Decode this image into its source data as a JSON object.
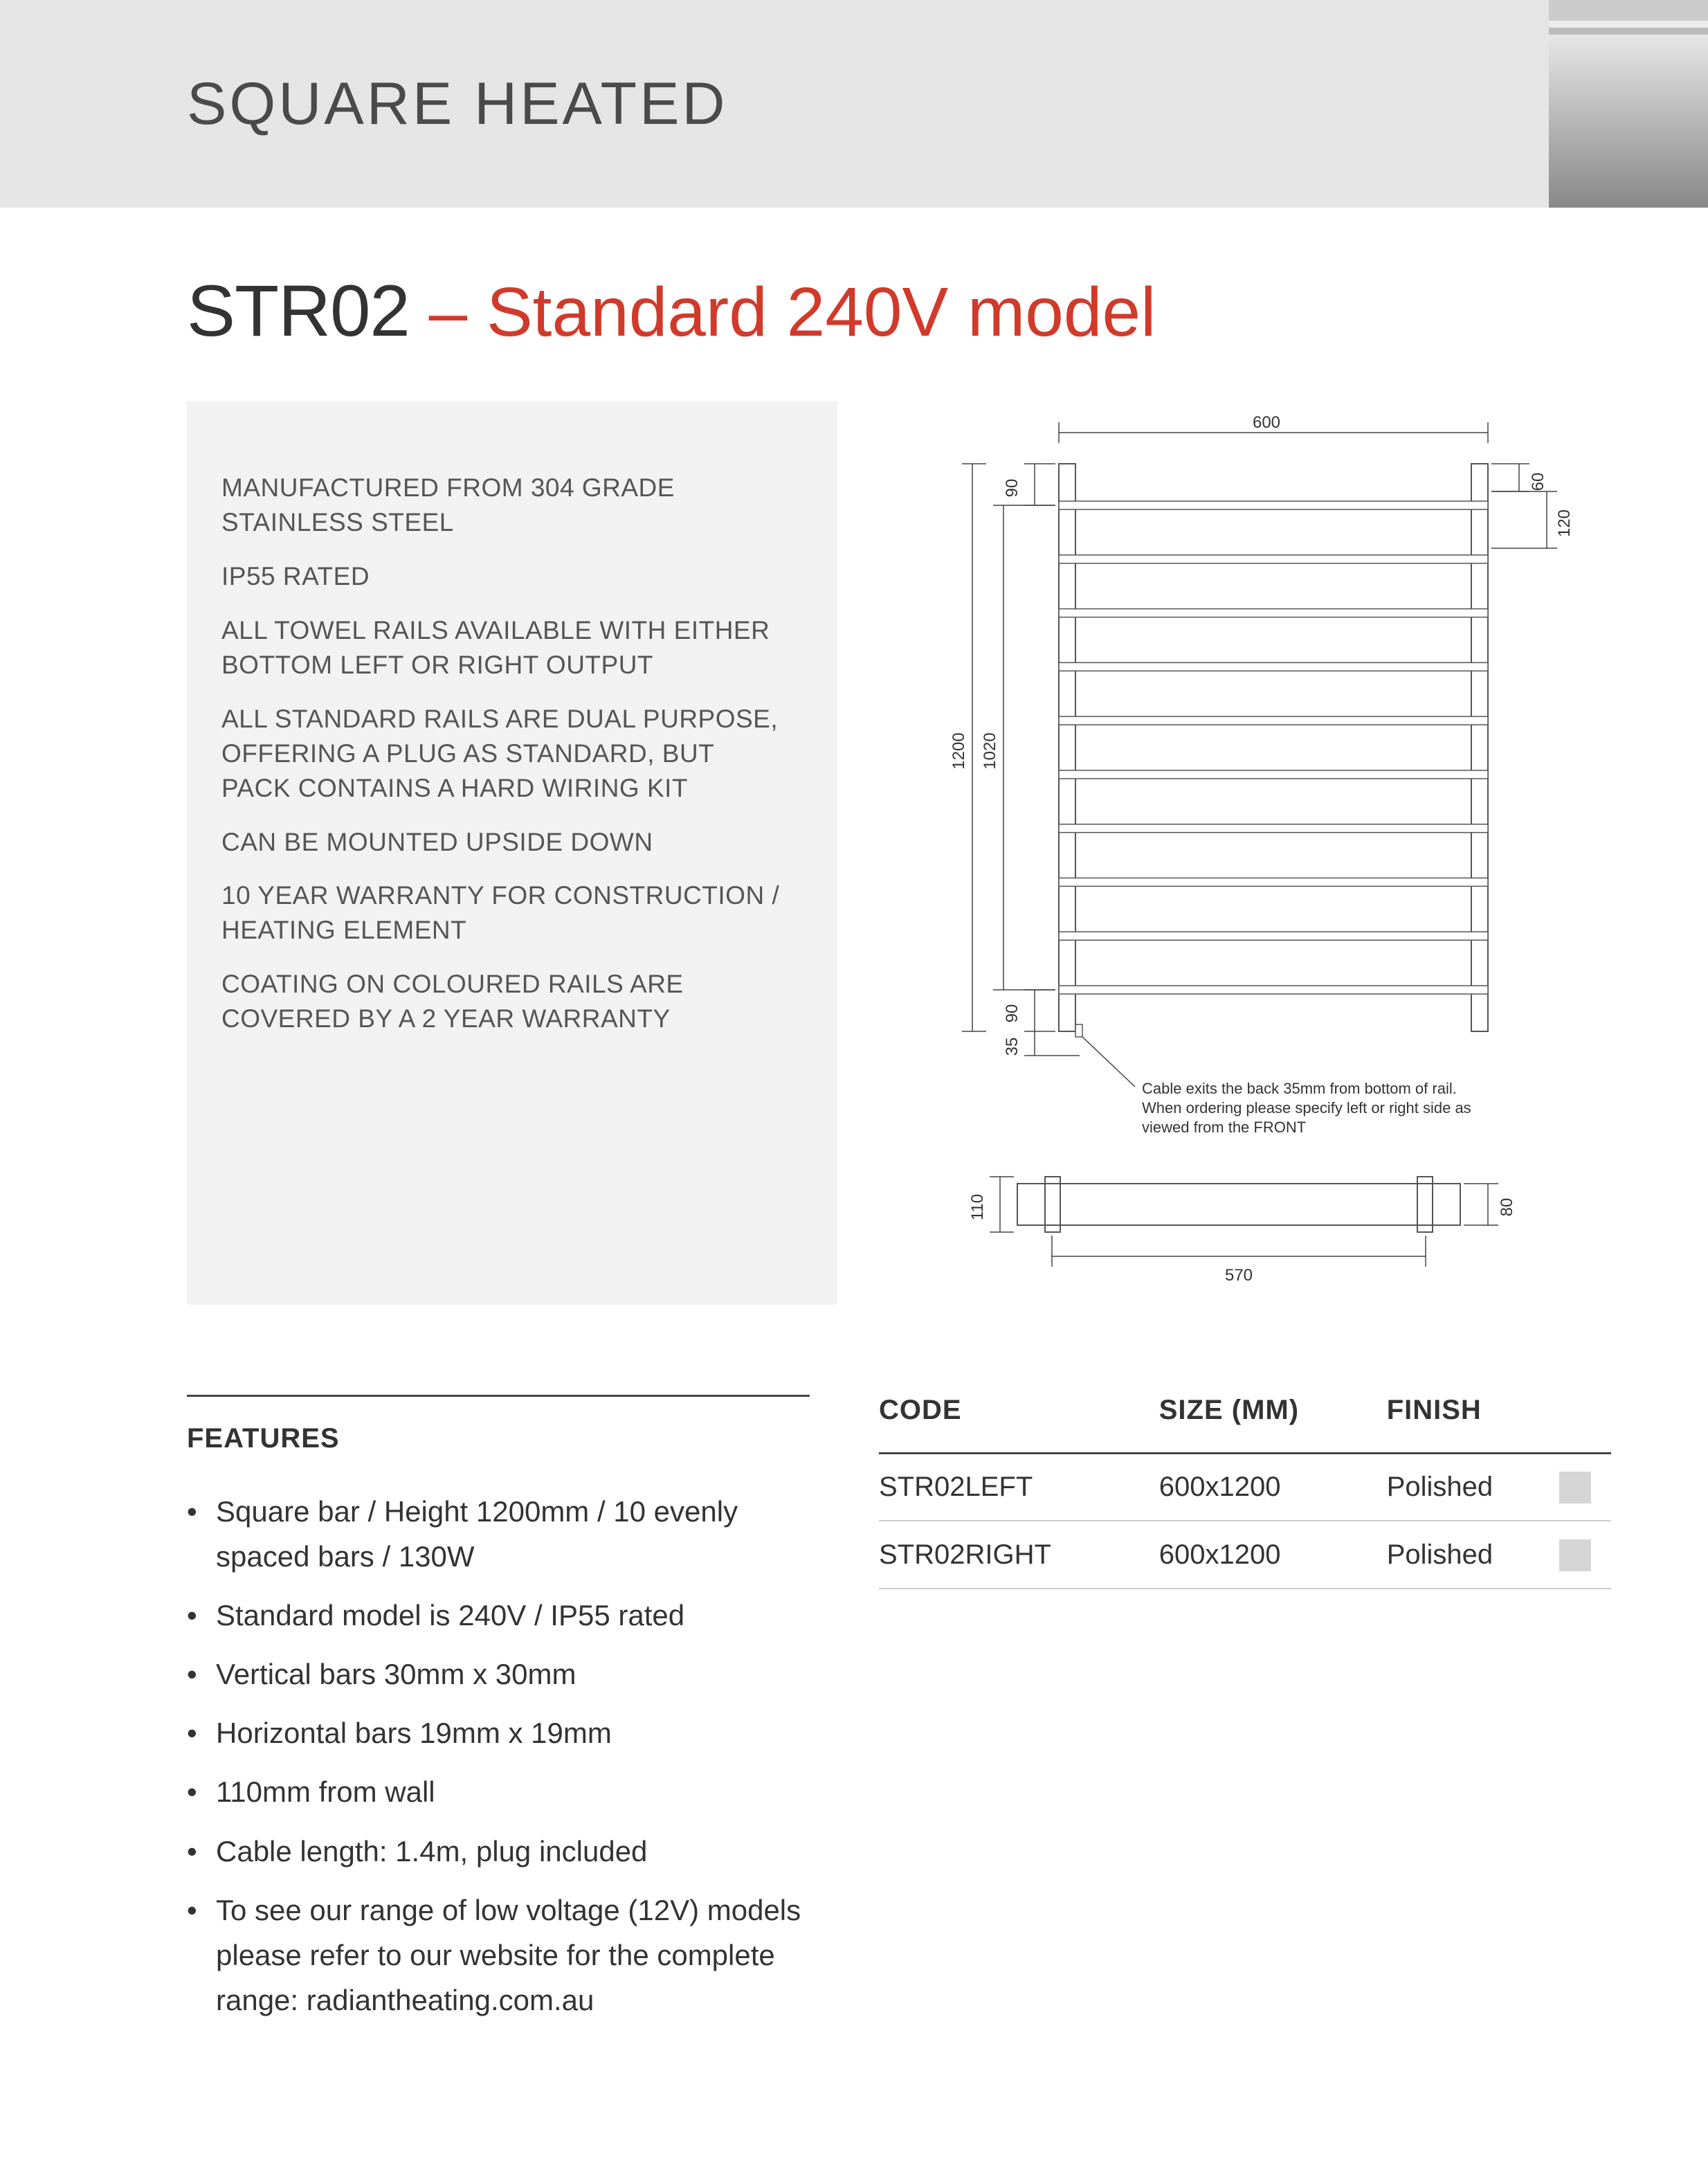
{
  "header": {
    "category": "SQUARE HEATED"
  },
  "title": {
    "code": "STR02",
    "sub": " – Standard 240V model"
  },
  "specbox": {
    "lines": [
      "MANUFACTURED FROM 304 GRADE STAINLESS STEEL",
      "IP55 RATED",
      "ALL TOWEL RAILS AVAILABLE WITH EITHER BOTTOM LEFT OR RIGHT OUTPUT",
      "ALL STANDARD RAILS ARE DUAL PURPOSE, OFFERING A PLUG AS STANDARD, BUT PACK CONTAINS A HARD WIRING KIT",
      "CAN BE MOUNTED UPSIDE DOWN",
      "10 YEAR WARRANTY FOR CONSTRUCTION / HEATING ELEMENT",
      "COATING ON COLOURED RAILS ARE COVERED BY A 2 YEAR WARRANTY"
    ]
  },
  "diagram": {
    "front": {
      "width_label": "600",
      "height_label": "1200",
      "inner_height_label": "1020",
      "top_gap_label": "90",
      "bottom_gap_label": "90",
      "cable_offset_label": "35",
      "right_top_label": "60",
      "right_second_label": "120",
      "bars": 10
    },
    "side": {
      "depth_label": "110",
      "rail_depth_label": "80",
      "inner_width_label": "570"
    },
    "note_line1": "Cable exits the back 35mm from bottom of rail.",
    "note_line2": "When ordering please specify left or right side as",
    "note_line3": "viewed from the FRONT"
  },
  "features": {
    "heading": "FEATURES",
    "items": [
      "Square bar / Height 1200mm / 10 evenly spaced bars / 130W",
      "Standard model is 240V / IP55 rated",
      "Vertical bars 30mm x 30mm",
      "Horizontal bars 19mm x 19mm",
      "110mm from wall",
      "Cable length: 1.4m, plug included",
      "To see our range of low voltage (12V) models please refer to our website for the complete range: radiantheating.com.au"
    ]
  },
  "table": {
    "columns": [
      "CODE",
      "SIZE (MM)",
      "FINISH",
      ""
    ],
    "rows": [
      {
        "code": "STR02LEFT",
        "size": "600x1200",
        "finish": "Polished",
        "swatch": "#d5d5d5"
      },
      {
        "code": "STR02RIGHT",
        "size": "600x1200",
        "finish": "Polished",
        "swatch": "#d5d5d5"
      }
    ]
  }
}
